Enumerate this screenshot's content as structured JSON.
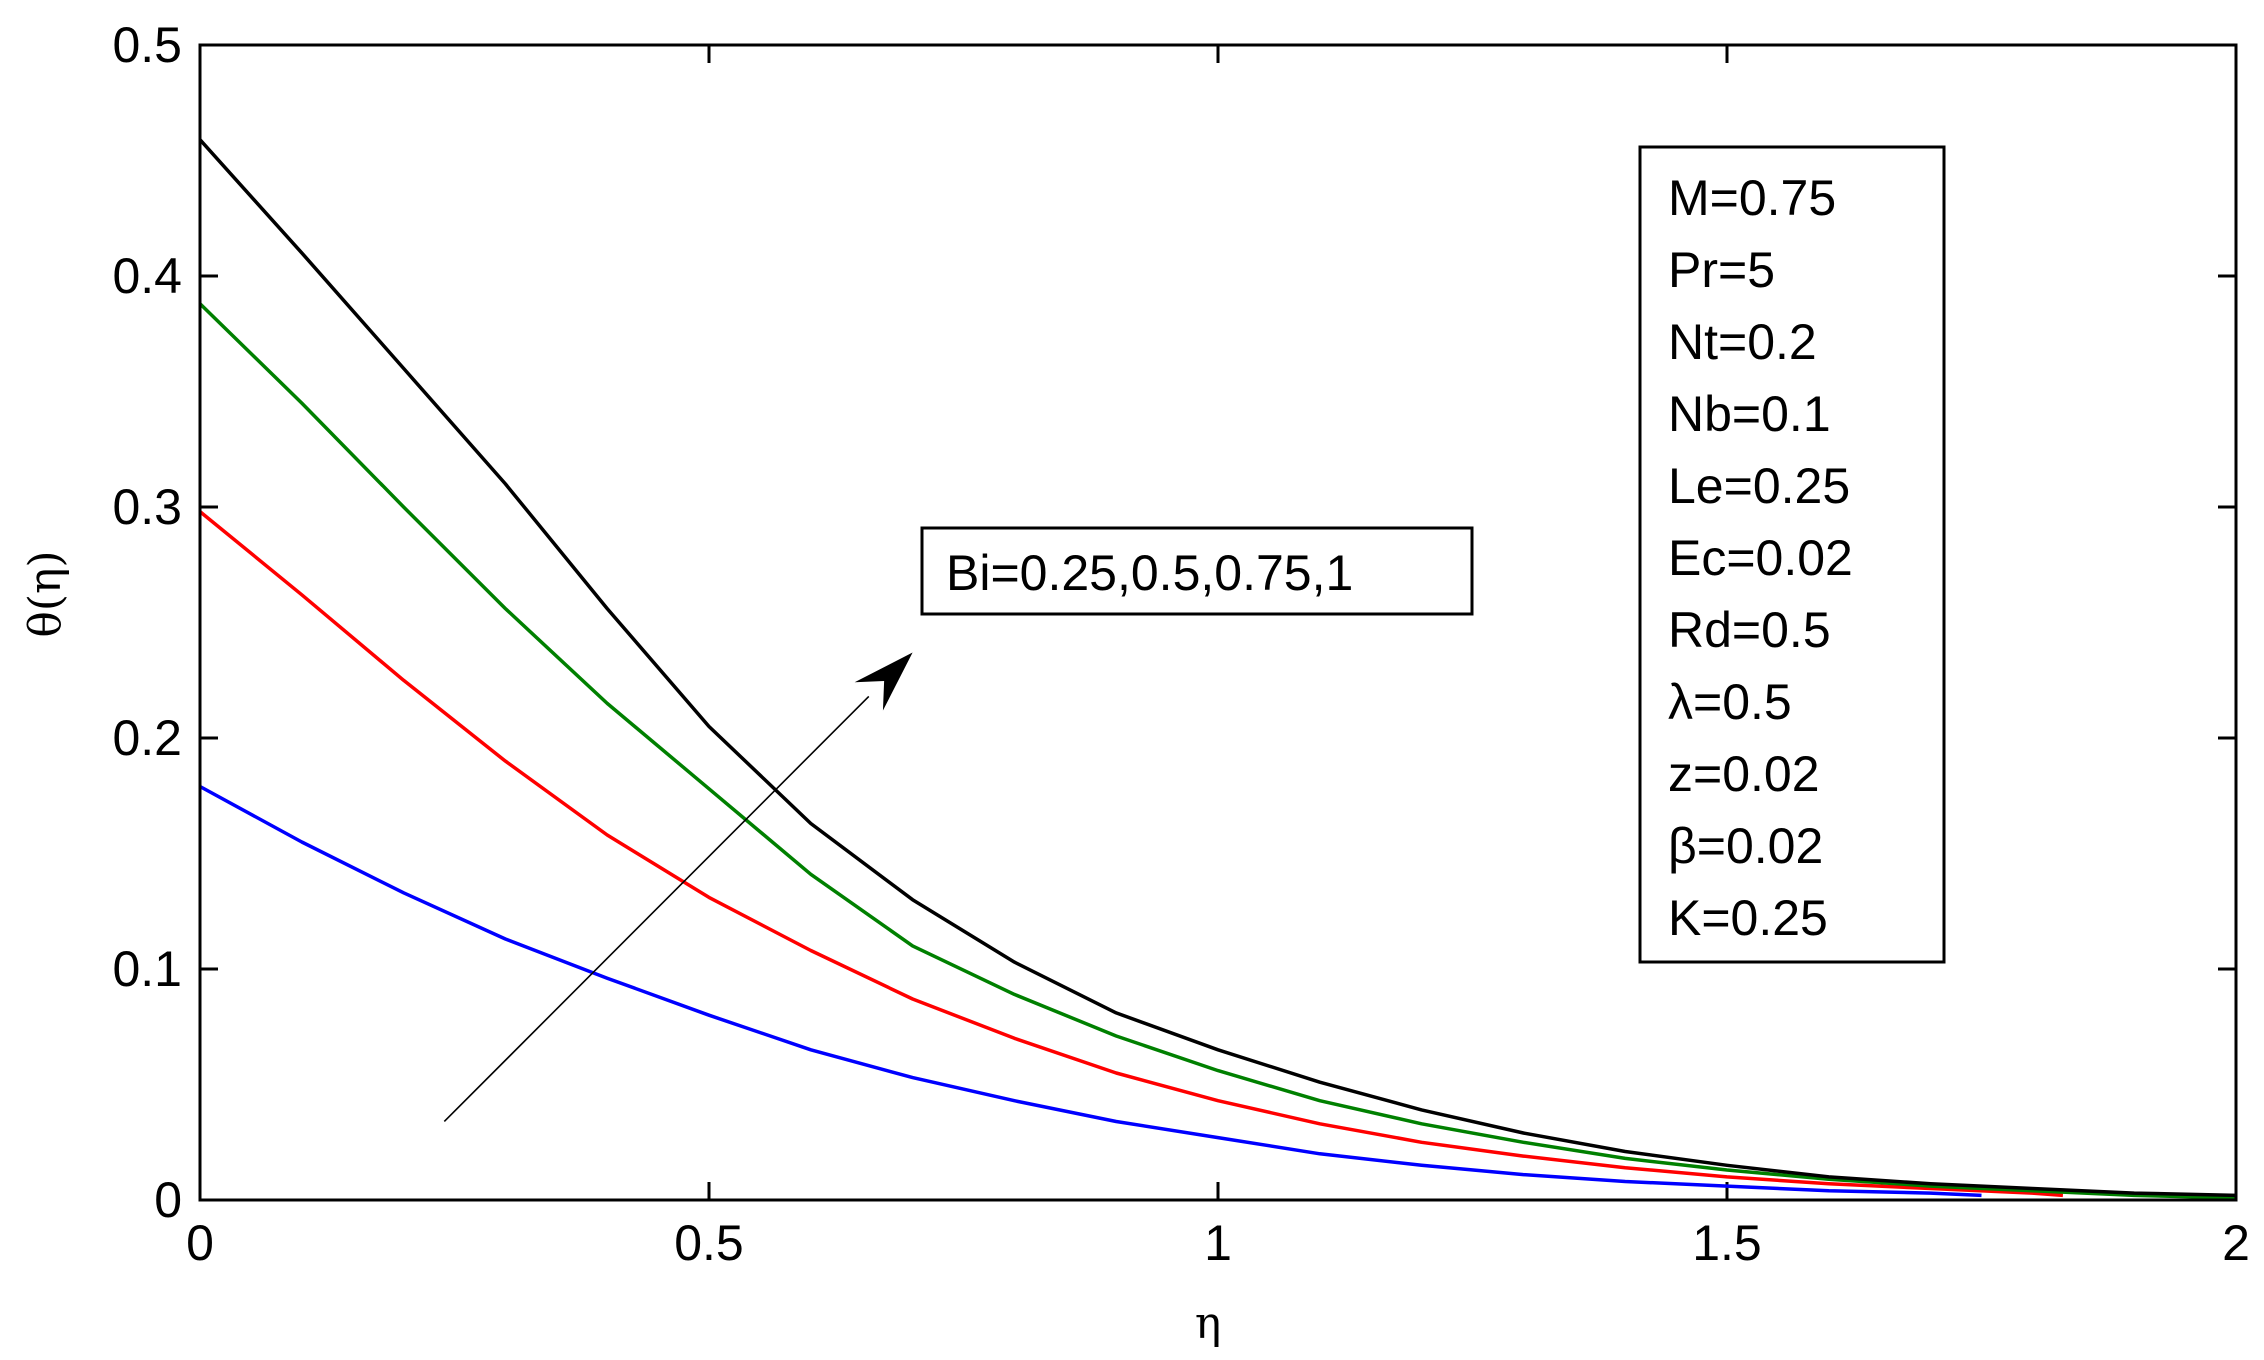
{
  "chart_data": {
    "type": "line",
    "title": "",
    "xlabel": "η",
    "ylabel": "θ(η)",
    "xlim": [
      0,
      2
    ],
    "ylim": [
      0,
      0.5
    ],
    "xticks": [
      0,
      0.5,
      1,
      1.5,
      2
    ],
    "xtick_labels": [
      "0",
      "0.5",
      "1",
      "1.5",
      "2"
    ],
    "yticks": [
      0,
      0.1,
      0.2,
      0.3,
      0.4,
      0.5
    ],
    "ytick_labels": [
      "0",
      "0.1",
      "0.2",
      "0.3",
      "0.4",
      "0.5"
    ],
    "grid": false,
    "series": [
      {
        "name": "Bi=0.25",
        "color": "#0000ff",
        "x": [
          0,
          0.1,
          0.2,
          0.3,
          0.4,
          0.5,
          0.6,
          0.7,
          0.8,
          0.9,
          1.0,
          1.1,
          1.2,
          1.3,
          1.4,
          1.5,
          1.6,
          1.7,
          1.75
        ],
        "y": [
          0.179,
          0.155,
          0.133,
          0.113,
          0.096,
          0.08,
          0.065,
          0.053,
          0.043,
          0.034,
          0.027,
          0.02,
          0.015,
          0.011,
          0.008,
          0.006,
          0.004,
          0.003,
          0.002
        ]
      },
      {
        "name": "Bi=0.5",
        "color": "#ff0000",
        "x": [
          0,
          0.1,
          0.2,
          0.3,
          0.4,
          0.5,
          0.6,
          0.7,
          0.8,
          0.9,
          1.0,
          1.1,
          1.2,
          1.3,
          1.4,
          1.5,
          1.6,
          1.7,
          1.8,
          1.83
        ],
        "y": [
          0.298,
          0.262,
          0.225,
          0.19,
          0.158,
          0.131,
          0.108,
          0.087,
          0.07,
          0.055,
          0.043,
          0.033,
          0.025,
          0.019,
          0.014,
          0.01,
          0.007,
          0.005,
          0.003,
          0.002
        ]
      },
      {
        "name": "Bi=0.75",
        "color": "#008000",
        "x": [
          0,
          0.1,
          0.2,
          0.3,
          0.4,
          0.5,
          0.6,
          0.7,
          0.8,
          0.9,
          1.0,
          1.1,
          1.2,
          1.3,
          1.4,
          1.5,
          1.6,
          1.7,
          1.8,
          1.9,
          2.0
        ],
        "y": [
          0.388,
          0.345,
          0.3,
          0.256,
          0.215,
          0.178,
          0.141,
          0.11,
          0.089,
          0.071,
          0.056,
          0.043,
          0.033,
          0.025,
          0.018,
          0.013,
          0.009,
          0.006,
          0.004,
          0.002,
          0.001
        ]
      },
      {
        "name": "Bi=1",
        "color": "#000000",
        "x": [
          0,
          0.1,
          0.2,
          0.3,
          0.4,
          0.5,
          0.6,
          0.7,
          0.8,
          0.9,
          1.0,
          1.1,
          1.2,
          1.3,
          1.4,
          1.5,
          1.6,
          1.7,
          1.8,
          1.9,
          2.0
        ],
        "y": [
          0.459,
          0.41,
          0.36,
          0.31,
          0.256,
          0.205,
          0.163,
          0.13,
          0.103,
          0.081,
          0.065,
          0.051,
          0.039,
          0.029,
          0.021,
          0.015,
          0.01,
          0.007,
          0.005,
          0.003,
          0.002
        ]
      }
    ],
    "annotation": {
      "text": "Bi=0.25,0.5,0.75,1",
      "arrow_from": [
        0.24,
        0.034
      ],
      "arrow_to": [
        0.7,
        0.237
      ]
    },
    "parameters": [
      "M=0.75",
      "Pr=5",
      "Nt=0.2",
      "Nb=0.1",
      "Le=0.25",
      "Ec=0.02",
      "Rd=0.5",
      "λ=0.5",
      "z=0.02",
      "β=0.02",
      "K=0.25"
    ]
  }
}
